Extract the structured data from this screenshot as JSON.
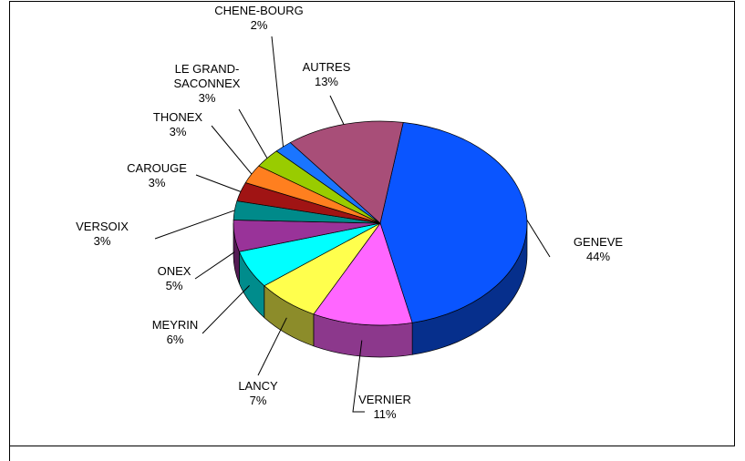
{
  "chart_data": {
    "type": "pie3d",
    "categories": [
      "GENEVE",
      "VERNIER",
      "LANCY",
      "MEYRIN",
      "ONEX",
      "VERSOIX",
      "CAROUGE",
      "THONEX",
      "LE GRAND-SACONNEX",
      "CHENE-BOURG",
      "AUTRES"
    ],
    "values": [
      44,
      11,
      7,
      6,
      5,
      3,
      3,
      3,
      3,
      2,
      13
    ],
    "value_labels": [
      "44%",
      "11%",
      "7%",
      "6%",
      "5%",
      "3%",
      "3%",
      "3%",
      "3%",
      "2%",
      "13%"
    ],
    "colors": [
      "#0a55ff",
      "#ff66ff",
      "#ffff4d",
      "#00ffff",
      "#993399",
      "#008a8a",
      "#a01414",
      "#ff7f1f",
      "#99cc00",
      "#1a75ff",
      "#a84e78"
    ]
  }
}
